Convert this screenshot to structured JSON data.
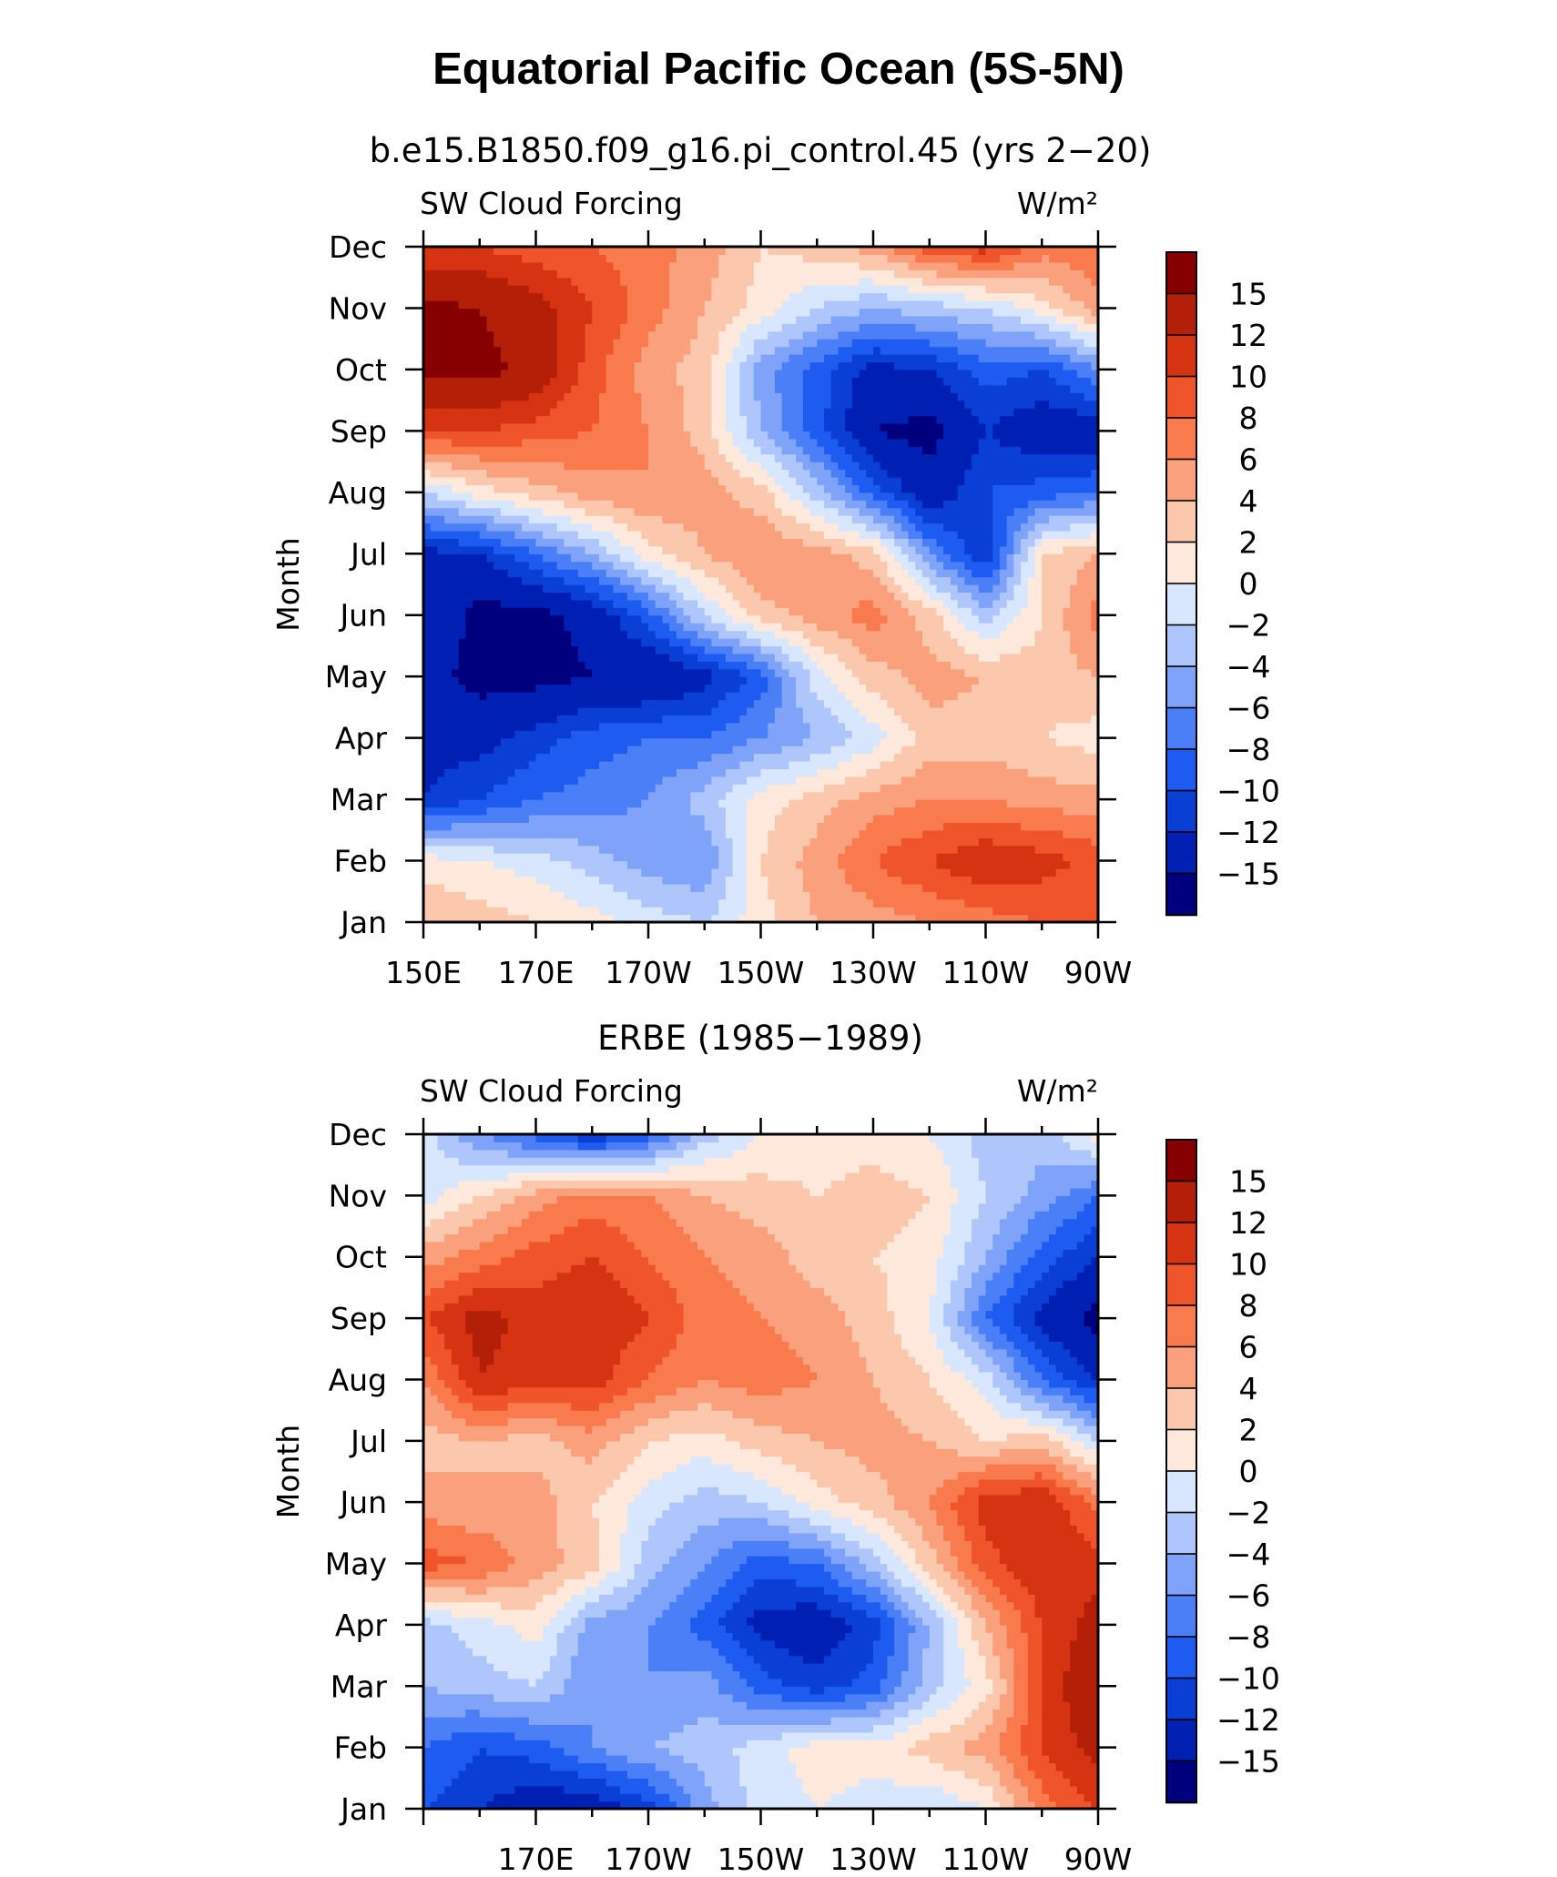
{
  "figure": {
    "title": "Equatorial Pacific Ocean (5S-5N)"
  },
  "chart_data": [
    {
      "type": "heatmap",
      "title": "b.e15.B1850.f09_g16.pi_control.45 (yrs 2−20)",
      "left_label": "SW Cloud Forcing",
      "units_label": "W/m²",
      "ylabel": "Month",
      "x_tick_labels": [
        "150E",
        "170E",
        "170W",
        "150W",
        "130W",
        "110W",
        "90W"
      ],
      "x_range": [
        150,
        270
      ],
      "x_units": "degrees east longitude",
      "y_tick_labels": [
        "Jan",
        "Feb",
        "Mar",
        "Apr",
        "May",
        "Jun",
        "Jul",
        "Aug",
        "Sep",
        "Oct",
        "Nov",
        "Dec"
      ],
      "colorbar_labels": [
        "15",
        "12",
        "10",
        "8",
        "6",
        "4",
        "2",
        "0",
        "−2",
        "−4",
        "−6",
        "−8",
        "−10",
        "−12",
        "−15"
      ],
      "levels": [
        -15,
        -12,
        -10,
        -8,
        -6,
        -4,
        -2,
        0,
        2,
        4,
        6,
        8,
        10,
        12,
        15
      ],
      "colors": [
        "#00007f",
        "#0020b4",
        "#0a3fd6",
        "#1e5bf0",
        "#4a7ff8",
        "#7fa3f8",
        "#aec6fb",
        "#d8e7fd",
        "#ffe9dc",
        "#fcc8ad",
        "#fba07c",
        "#f97a4c",
        "#f0542a",
        "#d63312",
        "#b41f08",
        "#870000"
      ],
      "lon": [
        150,
        160,
        170,
        180,
        190,
        200,
        210,
        220,
        230,
        240,
        250,
        260,
        270
      ],
      "months": [
        "Jan",
        "Feb",
        "Mar",
        "Apr",
        "May",
        "Jun",
        "Jul",
        "Aug",
        "Sep",
        "Oct",
        "Nov",
        "Dec"
      ],
      "values": [
        [
          4,
          3,
          2,
          1,
          -1,
          -2,
          1,
          4,
          5,
          6,
          7,
          8,
          9
        ],
        [
          1,
          0,
          -1,
          -3,
          -5,
          -6,
          2,
          5,
          8,
          10,
          12,
          11,
          9
        ],
        [
          -12,
          -10,
          -8,
          -7,
          -6,
          -3,
          1,
          3,
          5,
          6,
          6,
          5,
          5
        ],
        [
          -13,
          -13,
          -11,
          -9,
          -8,
          -8,
          -6,
          -4,
          -1,
          3,
          3,
          2,
          1
        ],
        [
          -14,
          -16,
          -16,
          -15,
          -15,
          -13,
          -9,
          -1,
          3,
          5,
          4,
          3,
          4
        ],
        [
          -12,
          -16,
          -16,
          -14,
          -9,
          -2,
          3,
          5,
          7,
          3,
          -3,
          2,
          7
        ],
        [
          -13,
          -12,
          -8,
          -4,
          1,
          4,
          6,
          5,
          3,
          -6,
          -12,
          2,
          4
        ],
        [
          -2,
          1,
          3,
          5,
          6,
          5,
          3,
          -3,
          -9,
          -14,
          -10,
          -9,
          -8
        ],
        [
          10,
          10,
          9,
          8,
          6,
          3,
          -4,
          -9,
          -15,
          -16,
          -12,
          -14,
          -14
        ],
        [
          16,
          16,
          14,
          9,
          5,
          3,
          -5,
          -9,
          -13,
          -12,
          -9,
          -10,
          -6
        ],
        [
          16,
          15,
          13,
          10,
          7,
          4,
          1,
          -2,
          -4,
          -3,
          -2,
          1,
          5
        ],
        [
          10,
          10,
          9,
          8,
          7,
          5,
          2,
          3,
          5,
          9,
          11,
          7,
          8
        ]
      ]
    },
    {
      "type": "heatmap",
      "title": "ERBE (1985−1989)",
      "left_label": "SW Cloud Forcing",
      "units_label": "W/m²",
      "ylabel": "Month",
      "x_tick_labels": [
        "170E",
        "170W",
        "150W",
        "130W",
        "110W",
        "90W"
      ],
      "x_range": [
        150,
        270
      ],
      "x_units": "degrees east longitude",
      "y_tick_labels": [
        "Jan",
        "Feb",
        "Mar",
        "Apr",
        "May",
        "Jun",
        "Jul",
        "Aug",
        "Sep",
        "Oct",
        "Nov",
        "Dec"
      ],
      "colorbar_labels": [
        "15",
        "12",
        "10",
        "8",
        "6",
        "4",
        "2",
        "0",
        "−2",
        "−4",
        "−6",
        "−8",
        "−10",
        "−12",
        "−15"
      ],
      "levels": [
        -15,
        -12,
        -10,
        -8,
        -6,
        -4,
        -2,
        0,
        2,
        4,
        6,
        8,
        10,
        12,
        15
      ],
      "colors": [
        "#00007f",
        "#0020b4",
        "#0a3fd6",
        "#1e5bf0",
        "#4a7ff8",
        "#7fa3f8",
        "#aec6fb",
        "#d8e7fd",
        "#ffe9dc",
        "#fcc8ad",
        "#fba07c",
        "#f97a4c",
        "#f0542a",
        "#d63312",
        "#b41f08",
        "#870000"
      ],
      "lon": [
        150,
        160,
        170,
        180,
        190,
        200,
        210,
        220,
        230,
        240,
        250,
        260,
        270
      ],
      "months": [
        "Jan",
        "Feb",
        "Mar",
        "Apr",
        "May",
        "Jun",
        "Jul",
        "Aug",
        "Sep",
        "Oct",
        "Nov",
        "Dec"
      ],
      "values": [
        [
          -10,
          -12,
          -14,
          -14,
          -11,
          -5,
          -1,
          0,
          -1,
          -2,
          0,
          7,
          10
        ],
        [
          -8,
          -10,
          -9,
          -6,
          -4,
          -3,
          -1,
          1,
          1,
          3,
          5,
          10,
          13
        ],
        [
          -4,
          -3,
          -2,
          -6,
          -6,
          -5,
          -9,
          -11,
          -9,
          -3,
          1,
          10,
          15
        ],
        [
          -3,
          -1,
          1,
          -5,
          -6,
          -9,
          -13,
          -14,
          -11,
          -4,
          4,
          10,
          13
        ],
        [
          9,
          8,
          5,
          3,
          -3,
          -6,
          -9,
          -8,
          -3,
          3,
          9,
          12,
          11
        ],
        [
          5,
          4,
          5,
          2,
          -1,
          -3,
          -2,
          1,
          3,
          6,
          11,
          12,
          7
        ],
        [
          3,
          4,
          3,
          5,
          2,
          1,
          3,
          4,
          5,
          4,
          2,
          3,
          -2
        ],
        [
          6,
          12,
          11,
          11,
          8,
          6,
          7,
          6,
          4,
          2,
          -1,
          -8,
          -12
        ],
        [
          10,
          13,
          11,
          12,
          10,
          7,
          6,
          5,
          3,
          0,
          -8,
          -13,
          -16
        ],
        [
          5,
          7,
          9,
          10,
          8,
          6,
          5,
          3,
          2,
          1,
          -4,
          -9,
          -12
        ],
        [
          -1,
          2,
          5,
          7,
          6,
          4,
          3,
          2,
          3,
          2,
          -2,
          -5,
          -8
        ],
        [
          -1,
          -6,
          -9,
          -12,
          -9,
          -3,
          0,
          1,
          1,
          0,
          -3,
          -3,
          1
        ]
      ]
    }
  ]
}
